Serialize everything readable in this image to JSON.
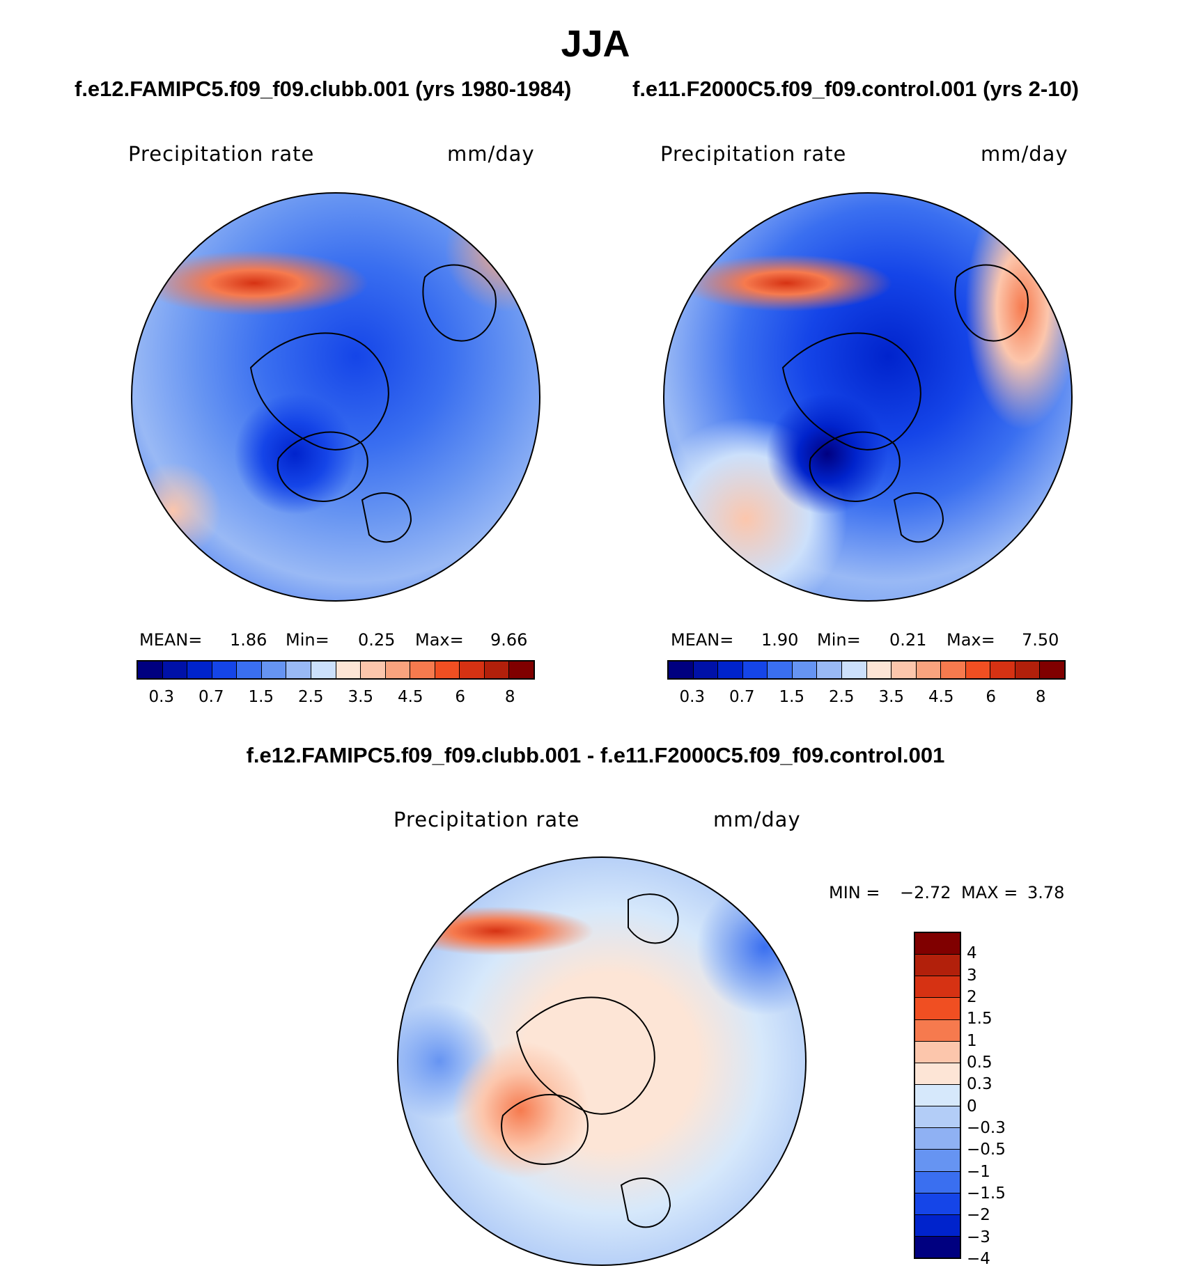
{
  "title": "JJA",
  "colors": {
    "precip_scale": [
      "#000080",
      "#0011a8",
      "#0023cc",
      "#1545e8",
      "#3a6ff0",
      "#6694f2",
      "#99b9f5",
      "#cce0fb",
      "#fde5d6",
      "#fcc6ac",
      "#f9a37e",
      "#f67a4e",
      "#f04f22",
      "#d63213",
      "#b2200b",
      "#800000"
    ],
    "diff_scale": [
      "#800000",
      "#b2200b",
      "#d63213",
      "#f04f22",
      "#f67a4e",
      "#fcc6ac",
      "#fde5d6",
      "#d6e8fb",
      "#b3cdf7",
      "#8fb1f3",
      "#6694f2",
      "#3a6ff0",
      "#1545e8",
      "#0023cc",
      "#000080"
    ]
  },
  "panels": {
    "left": {
      "title": "f.e12.FAMIPC5.f09_f09.clubb.001 (yrs 1980-1984)",
      "variable": "Precipitation rate",
      "units": "mm/day",
      "stats": {
        "mean_label": "MEAN=",
        "mean": "1.86",
        "min_label": "Min=",
        "min": "0.25",
        "max_label": "Max=",
        "max": "9.66"
      },
      "colorbar_ticks": [
        "0.3",
        "0.7",
        "1.5",
        "2.5",
        "3.5",
        "4.5",
        "6",
        "8"
      ]
    },
    "right": {
      "title": "f.e11.F2000C5.f09_f09.control.001 (yrs 2-10)",
      "variable": "Precipitation rate",
      "units": "mm/day",
      "stats": {
        "mean_label": "MEAN=",
        "mean": "1.90",
        "min_label": "Min=",
        "min": "0.21",
        "max_label": "Max=",
        "max": "7.50"
      },
      "colorbar_ticks": [
        "0.3",
        "0.7",
        "1.5",
        "2.5",
        "3.5",
        "4.5",
        "6",
        "8"
      ]
    },
    "diff": {
      "title": "f.e12.FAMIPC5.f09_f09.clubb.001 - f.e11.F2000C5.f09_f09.control.001",
      "variable": "Precipitation rate",
      "units": "mm/day",
      "stats": {
        "min_label": "MIN =",
        "min": "−2.72",
        "max_label": "MAX =",
        "max": "3.78"
      },
      "colorbar_ticks": [
        "4",
        "3",
        "2",
        "1.5",
        "1",
        "0.5",
        "0.3",
        "0",
        "−0.3",
        "−0.5",
        "−1",
        "−1.5",
        "−2",
        "−3",
        "−4"
      ]
    }
  }
}
